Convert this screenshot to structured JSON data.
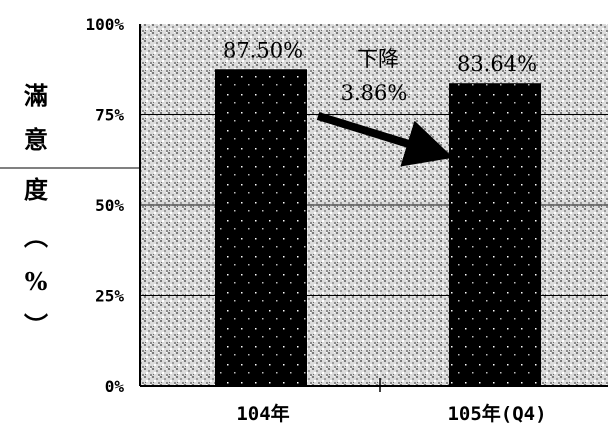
{
  "chart_data": {
    "type": "bar",
    "categories": [
      "104年",
      "105年(Q4)"
    ],
    "values": [
      87.5,
      83.64
    ],
    "data_labels": [
      "87.50%",
      "83.64%"
    ],
    "ylabel": [
      "滿",
      "意",
      "度",
      "︵",
      "%",
      "︶"
    ],
    "ylim": [
      0,
      100
    ],
    "yticks": [
      0,
      25,
      50,
      75,
      100
    ],
    "ytick_labels": [
      "0%",
      "25%",
      "50%",
      "75%",
      "100%"
    ],
    "grid": true,
    "annotation": {
      "lines": [
        "下降",
        "3.86%"
      ]
    },
    "colors": {
      "bar": "#000000",
      "background_pattern": "#9a9a9a"
    }
  }
}
